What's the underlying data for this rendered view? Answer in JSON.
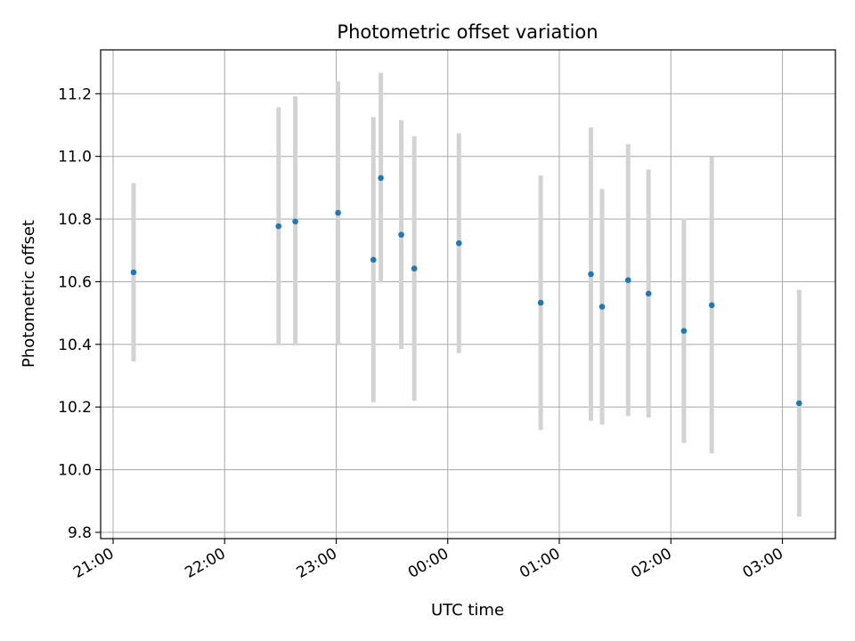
{
  "chart_data": {
    "type": "scatter",
    "title": "Photometric offset variation",
    "xlabel": "UTC time",
    "ylabel": "Photometric offset",
    "x_axis_kind": "time",
    "x_ticks": [
      "21:00",
      "22:00",
      "23:00",
      "00:00",
      "01:00",
      "02:00",
      "03:00"
    ],
    "y_ticks": [
      "9.8",
      "10.0",
      "10.2",
      "10.4",
      "10.6",
      "10.8",
      "11.0",
      "11.2"
    ],
    "ylim": [
      9.78,
      11.34
    ],
    "grid": true,
    "colors": {
      "points": "#1f77b4",
      "error_bars": "#d3d3d3",
      "grid": "#b0b0b0"
    },
    "series": [
      {
        "points": [
          {
            "t": "21:11",
            "y": 10.63,
            "ylo": 10.345,
            "yhi": 10.915
          },
          {
            "t": "22:29",
            "y": 10.777,
            "ylo": 10.397,
            "yhi": 11.157
          },
          {
            "t": "22:38",
            "y": 10.792,
            "ylo": 10.397,
            "yhi": 11.192
          },
          {
            "t": "23:01",
            "y": 10.82,
            "ylo": 10.4,
            "yhi": 11.24
          },
          {
            "t": "23:20",
            "y": 10.67,
            "ylo": 10.215,
            "yhi": 11.125
          },
          {
            "t": "23:24",
            "y": 10.931,
            "ylo": 10.597,
            "yhi": 11.267
          },
          {
            "t": "23:35",
            "y": 10.75,
            "ylo": 10.385,
            "yhi": 11.115
          },
          {
            "t": "23:42",
            "y": 10.642,
            "ylo": 10.22,
            "yhi": 11.064
          },
          {
            "t": "00:06",
            "y": 10.723,
            "ylo": 10.372,
            "yhi": 11.074
          },
          {
            "t": "00:50",
            "y": 10.533,
            "ylo": 10.127,
            "yhi": 10.939
          },
          {
            "t": "01:17",
            "y": 10.624,
            "ylo": 10.156,
            "yhi": 11.092
          },
          {
            "t": "01:23",
            "y": 10.52,
            "ylo": 10.144,
            "yhi": 10.896
          },
          {
            "t": "01:37",
            "y": 10.605,
            "ylo": 10.171,
            "yhi": 11.039
          },
          {
            "t": "01:48",
            "y": 10.562,
            "ylo": 10.166,
            "yhi": 10.958
          },
          {
            "t": "02:07",
            "y": 10.443,
            "ylo": 10.085,
            "yhi": 10.801
          },
          {
            "t": "02:22",
            "y": 10.525,
            "ylo": 10.052,
            "yhi": 10.998
          },
          {
            "t": "03:09",
            "y": 10.212,
            "ylo": 9.85,
            "yhi": 10.574
          }
        ]
      }
    ]
  }
}
